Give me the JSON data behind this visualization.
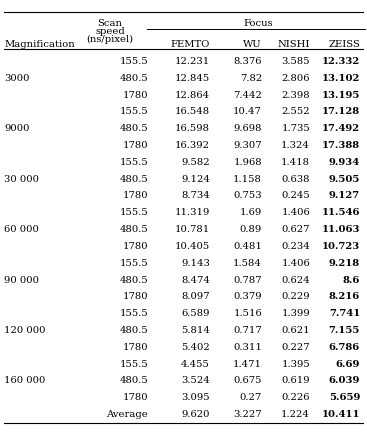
{
  "rows": [
    [
      "",
      "155.5",
      "12.231",
      "8.376",
      "3.585",
      "12.332"
    ],
    [
      "3000",
      "480.5",
      "12.845",
      "7.82",
      "2.806",
      "13.102"
    ],
    [
      "",
      "1780",
      "12.864",
      "7.442",
      "2.398",
      "13.195"
    ],
    [
      "",
      "155.5",
      "16.548",
      "10.47",
      "2.552",
      "17.128"
    ],
    [
      "9000",
      "480.5",
      "16.598",
      "9.698",
      "1.735",
      "17.492"
    ],
    [
      "",
      "1780",
      "16.392",
      "9.307",
      "1.324",
      "17.388"
    ],
    [
      "",
      "155.5",
      "9.582",
      "1.968",
      "1.418",
      "9.934"
    ],
    [
      "30 000",
      "480.5",
      "9.124",
      "1.158",
      "0.638",
      "9.505"
    ],
    [
      "",
      "1780",
      "8.734",
      "0.753",
      "0.245",
      "9.127"
    ],
    [
      "",
      "155.5",
      "11.319",
      "1.69",
      "1.406",
      "11.546"
    ],
    [
      "60 000",
      "480.5",
      "10.781",
      "0.89",
      "0.627",
      "11.063"
    ],
    [
      "",
      "1780",
      "10.405",
      "0.481",
      "0.234",
      "10.723"
    ],
    [
      "",
      "155.5",
      "9.143",
      "1.584",
      "1.406",
      "9.218"
    ],
    [
      "90 000",
      "480.5",
      "8.474",
      "0.787",
      "0.624",
      "8.6"
    ],
    [
      "",
      "1780",
      "8.097",
      "0.379",
      "0.229",
      "8.216"
    ],
    [
      "",
      "155.5",
      "6.589",
      "1.516",
      "1.399",
      "7.741"
    ],
    [
      "120 000",
      "480.5",
      "5.814",
      "0.717",
      "0.621",
      "7.155"
    ],
    [
      "",
      "1780",
      "5.402",
      "0.311",
      "0.227",
      "6.786"
    ],
    [
      "",
      "155.5",
      "4.455",
      "1.471",
      "1.395",
      "6.69"
    ],
    [
      "160 000",
      "480.5",
      "3.524",
      "0.675",
      "0.619",
      "6.039"
    ],
    [
      "",
      "1780",
      "3.095",
      "0.27",
      "0.226",
      "5.659"
    ],
    [
      "",
      "Average",
      "9.620",
      "3.227",
      "1.224",
      "10.411"
    ]
  ],
  "figure_bg": "white",
  "text_color": "black",
  "fontsize": 7.2
}
